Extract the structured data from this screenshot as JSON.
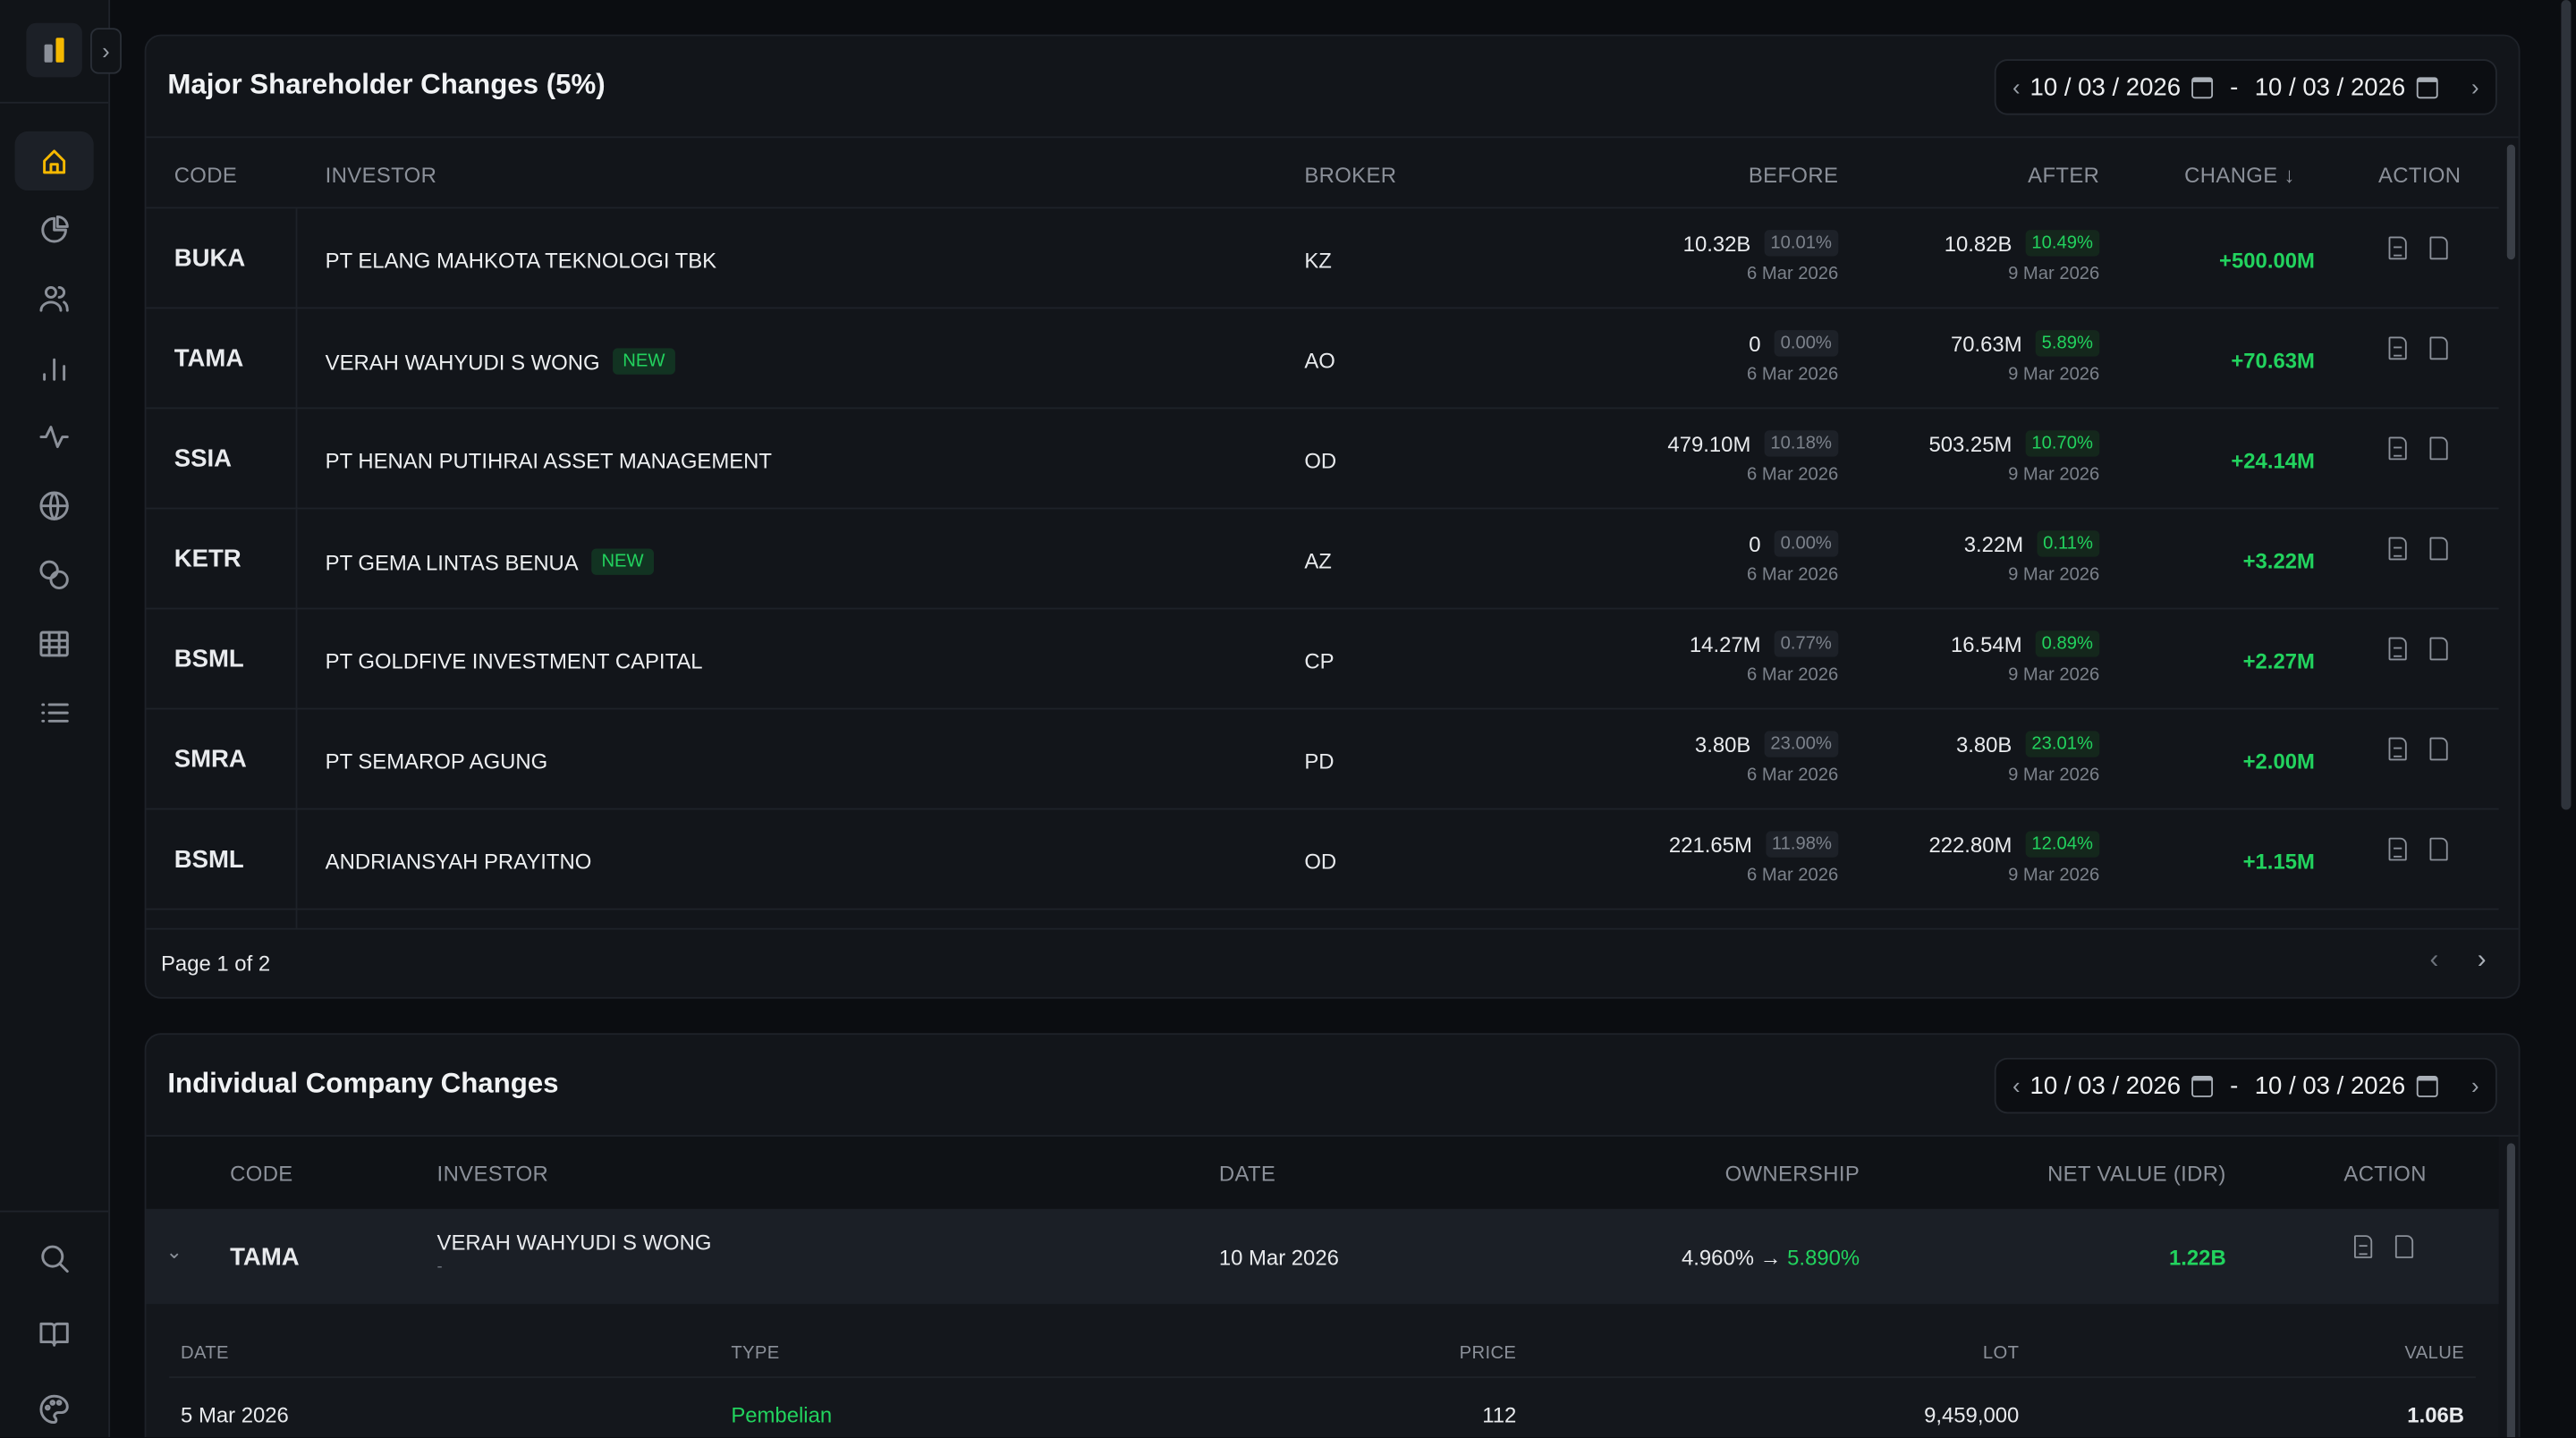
{
  "sidebar": {
    "items": [
      "home",
      "portfolio",
      "investors",
      "charts",
      "activity",
      "global",
      "coins",
      "grid",
      "list"
    ],
    "bottom": [
      "search",
      "guide",
      "theme"
    ]
  },
  "major": {
    "title": "Major Shareholder Changes (5%)",
    "date_from": "10 / 03 / 2026",
    "date_to": "10 / 03 / 2026",
    "date_sep": "-",
    "headers": {
      "code": "CODE",
      "investor": "INVESTOR",
      "broker": "BROKER",
      "before": "BEFORE",
      "after": "AFTER",
      "change": "CHANGE ↓",
      "action": "ACTION"
    },
    "rows": [
      {
        "code": "BUKA",
        "investor": "PT ELANG MAHKOTA TEKNOLOGI TBK",
        "new": "",
        "broker": "KZ",
        "before": "10.32B",
        "before_pct": "10.01%",
        "before_date": "6 Mar 2026",
        "after": "10.82B",
        "after_pct": "10.49%",
        "after_date": "9 Mar 2026",
        "change": "+500.00M"
      },
      {
        "code": "TAMA",
        "investor": "VERAH WAHYUDI S WONG",
        "new": "NEW",
        "broker": "AO",
        "before": "0",
        "before_pct": "0.00%",
        "before_date": "6 Mar 2026",
        "after": "70.63M",
        "after_pct": "5.89%",
        "after_date": "9 Mar 2026",
        "change": "+70.63M"
      },
      {
        "code": "SSIA",
        "investor": "PT HENAN PUTIHRAI ASSET MANAGEMENT",
        "new": "",
        "broker": "OD",
        "before": "479.10M",
        "before_pct": "10.18%",
        "before_date": "6 Mar 2026",
        "after": "503.25M",
        "after_pct": "10.70%",
        "after_date": "9 Mar 2026",
        "change": "+24.14M"
      },
      {
        "code": "KETR",
        "investor": "PT GEMA LINTAS BENUA",
        "new": "NEW",
        "broker": "AZ",
        "before": "0",
        "before_pct": "0.00%",
        "before_date": "6 Mar 2026",
        "after": "3.22M",
        "after_pct": "0.11%",
        "after_date": "9 Mar 2026",
        "change": "+3.22M"
      },
      {
        "code": "BSML",
        "investor": "PT GOLDFIVE INVESTMENT CAPITAL",
        "new": "",
        "broker": "CP",
        "before": "14.27M",
        "before_pct": "0.77%",
        "before_date": "6 Mar 2026",
        "after": "16.54M",
        "after_pct": "0.89%",
        "after_date": "9 Mar 2026",
        "change": "+2.27M"
      },
      {
        "code": "SMRA",
        "investor": "PT SEMAROP AGUNG",
        "new": "",
        "broker": "PD",
        "before": "3.80B",
        "before_pct": "23.00%",
        "before_date": "6 Mar 2026",
        "after": "3.80B",
        "after_pct": "23.01%",
        "after_date": "9 Mar 2026",
        "change": "+2.00M"
      },
      {
        "code": "BSML",
        "investor": "ANDRIANSYAH PRAYITNO",
        "new": "",
        "broker": "OD",
        "before": "221.65M",
        "before_pct": "11.98%",
        "before_date": "6 Mar 2026",
        "after": "222.80M",
        "after_pct": "12.04%",
        "after_date": "9 Mar 2026",
        "change": "+1.15M"
      }
    ],
    "page": "Page 1 of 2"
  },
  "individual": {
    "title": "Individual Company Changes",
    "date_from": "10 / 03 / 2026",
    "date_to": "10 / 03 / 2026",
    "date_sep": "-",
    "headers": {
      "code": "CODE",
      "investor": "INVESTOR",
      "date": "DATE",
      "ownership": "OWNERSHIP",
      "net_value": "NET VALUE (IDR)",
      "action": "ACTION"
    },
    "row": {
      "code": "TAMA",
      "investor": "VERAH WAHYUDI S WONG",
      "sub": "-",
      "date": "10 Mar 2026",
      "own_from": "4.960%",
      "arrow": "→",
      "own_to": "5.890%",
      "net": "1.22B"
    },
    "sub_headers": {
      "date": "DATE",
      "type": "TYPE",
      "price": "PRICE",
      "lot": "LOT",
      "value": "VALUE"
    },
    "sub_rows": [
      {
        "date": "5 Mar 2026",
        "type": "Pembelian",
        "price": "112",
        "lot": "9,459,000",
        "value": "1.06B"
      }
    ]
  }
}
